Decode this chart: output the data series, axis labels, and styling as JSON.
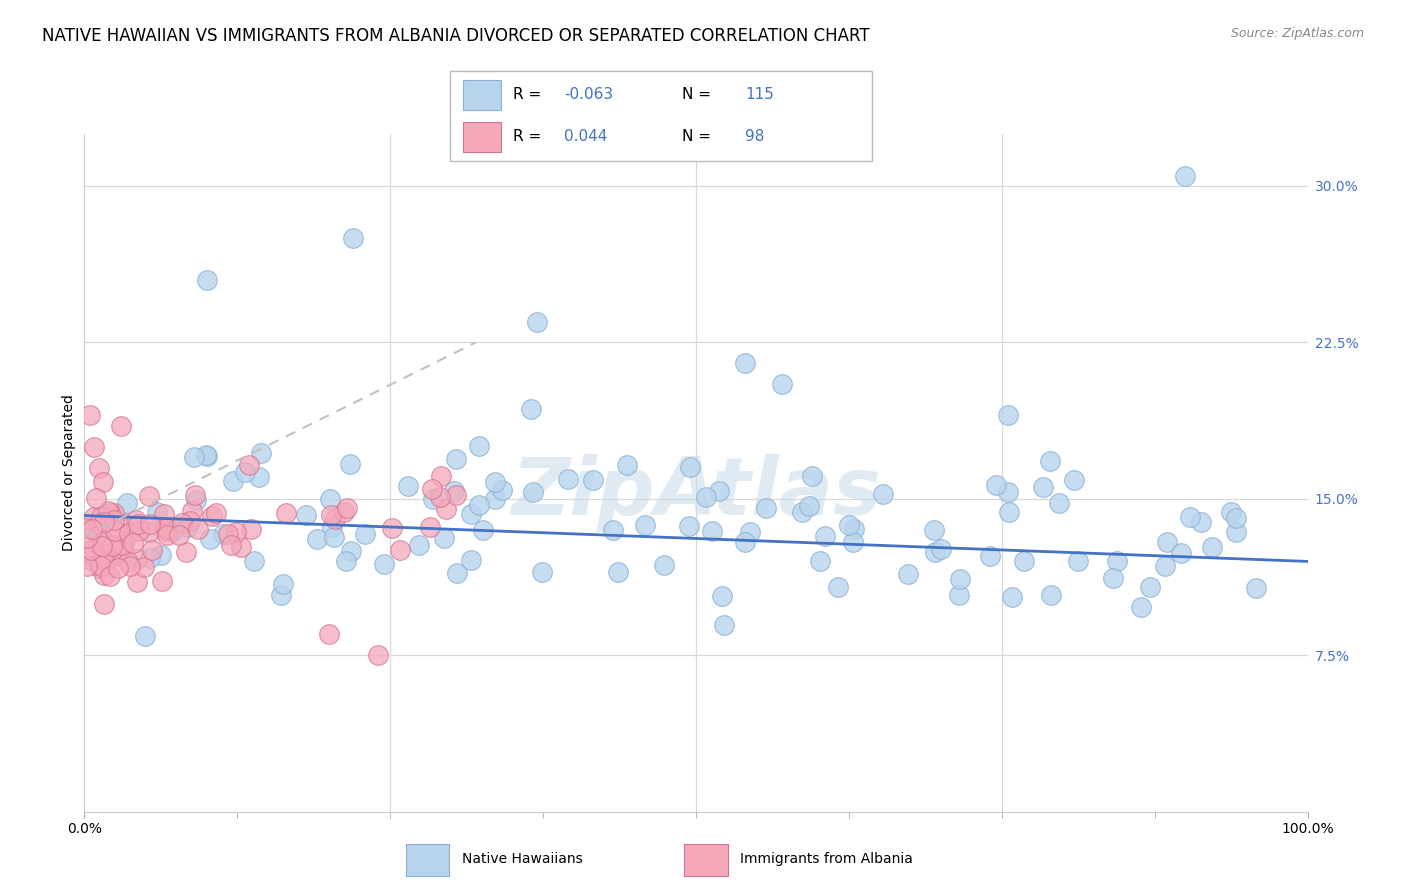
{
  "title": "NATIVE HAWAIIAN VS IMMIGRANTS FROM ALBANIA DIVORCED OR SEPARATED CORRELATION CHART",
  "source": "Source: ZipAtlas.com",
  "ylabel": "Divorced or Separated",
  "xlim": [
    0.0,
    100.0
  ],
  "ylim": [
    0.0,
    32.5
  ],
  "yticks": [
    7.5,
    15.0,
    22.5,
    30.0
  ],
  "blue_color": "#b8d4ed",
  "blue_edge_color": "#8ab0d4",
  "pink_color": "#f4a8ba",
  "pink_edge_color": "#d47090",
  "blue_trend_color": "#4472c4",
  "pink_trend_color": "#c0c0c0",
  "grid_color": "#d8d8d8",
  "background_color": "#ffffff",
  "watermark": "ZipAtlas",
  "watermark_color": "#ccdcec",
  "title_fontsize": 12,
  "source_fontsize": 9,
  "axis_label_fontsize": 10,
  "tick_fontsize": 10,
  "legend_fontsize": 11,
  "legend_R1": "-0.063",
  "legend_N1": "115",
  "legend_R2": "0.044",
  "legend_N2": "98",
  "blue_label": "Native Hawaiians",
  "pink_label": "Immigrants from Albania"
}
